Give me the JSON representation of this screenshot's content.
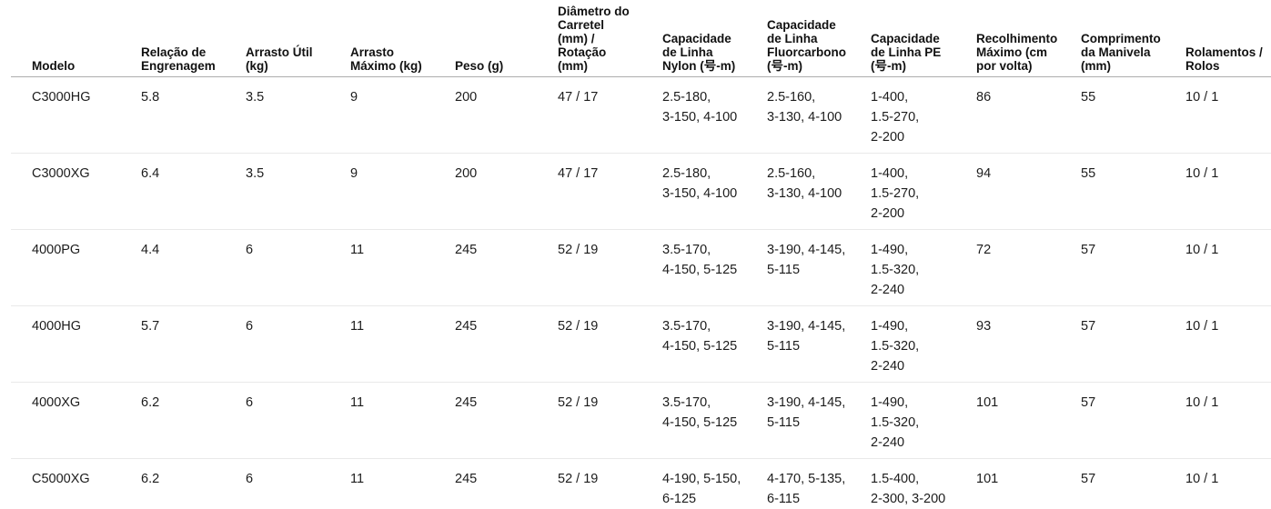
{
  "colors": {
    "background": "#ffffff",
    "header_text": "#111111",
    "cell_text": "#1c1c1c",
    "header_border": "#adadad",
    "row_border": "#e9e9e9"
  },
  "table": {
    "columns": [
      "Modelo",
      "Relação de\nEngrenagem",
      "Arrasto Útil\n(kg)",
      "Arrasto\nMáximo (kg)",
      "Peso (g)",
      "Diâmetro do\nCarretel\n(mm) /\nRotação\n(mm)",
      "Capacidade\nde Linha\nNylon (号-m)",
      "Capacidade\nde Linha\nFluorcarbono\n(号-m)",
      "Capacidade\nde Linha PE\n(号-m)",
      "Recolhimento\nMáximo (cm\npor volta)",
      "Comprimento\nda Manivela\n(mm)",
      "Rolamentos /\nRolos"
    ],
    "rows": [
      {
        "cells": [
          "C3000HG",
          "5.8",
          "3.5",
          "9",
          "200",
          "47 / 17",
          "2.5-180,\n3-150, 4-100",
          "2.5-160,\n3-130, 4-100",
          "1-400,\n1.5-270,\n2-200",
          "86",
          "55",
          "10 / 1"
        ]
      },
      {
        "cells": [
          "C3000XG",
          "6.4",
          "3.5",
          "9",
          "200",
          "47 / 17",
          "2.5-180,\n3-150, 4-100",
          "2.5-160,\n3-130, 4-100",
          "1-400,\n1.5-270,\n2-200",
          "94",
          "55",
          "10 / 1"
        ]
      },
      {
        "cells": [
          "4000PG",
          "4.4",
          "6",
          "11",
          "245",
          "52 / 19",
          "3.5-170,\n4-150, 5-125",
          "3-190, 4-145,\n5-115",
          "1-490,\n1.5-320,\n2-240",
          "72",
          "57",
          "10 / 1"
        ]
      },
      {
        "cells": [
          "4000HG",
          "5.7",
          "6",
          "11",
          "245",
          "52 / 19",
          "3.5-170,\n4-150, 5-125",
          "3-190, 4-145,\n5-115",
          "1-490,\n1.5-320,\n2-240",
          "93",
          "57",
          "10 / 1"
        ]
      },
      {
        "cells": [
          "4000XG",
          "6.2",
          "6",
          "11",
          "245",
          "52 / 19",
          "3.5-170,\n4-150, 5-125",
          "3-190, 4-145,\n5-115",
          "1-490,\n1.5-320,\n2-240",
          "101",
          "57",
          "10 / 1"
        ]
      },
      {
        "cells": [
          "C5000XG",
          "6.2",
          "6",
          "11",
          "245",
          "52 / 19",
          "4-190, 5-150,\n6-125",
          "4-170, 5-135,\n6-115",
          "1.5-400,\n2-300, 3-200",
          "101",
          "57",
          "10 / 1"
        ]
      }
    ]
  }
}
